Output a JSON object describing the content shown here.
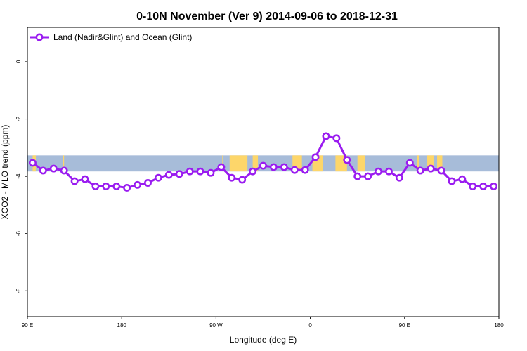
{
  "chart_data": {
    "type": "line",
    "title": "0-10N November (Ver 9)   2014-09-06 to 2018-12-31",
    "xlabel": "Longitude (deg E)",
    "ylabel": "XCO2 - MLO trend (ppm)",
    "x_ticks": [
      {
        "value": 90,
        "label": "90 E"
      },
      {
        "value": 180,
        "label": "180"
      },
      {
        "value": 270,
        "label": "90 W"
      },
      {
        "value": 360,
        "label": "0"
      },
      {
        "value": 450,
        "label": "90 E"
      },
      {
        "value": 540,
        "label": "180"
      }
    ],
    "y_ticks": [
      0,
      -2,
      -4,
      -6,
      -8
    ],
    "xlim": [
      90,
      540
    ],
    "ylim": [
      -8.9,
      1.2
    ],
    "grid": false,
    "legend_position": "top-left",
    "colors": {
      "series": "#9a1cf0",
      "ocean": "#a7bcd9",
      "land": "#fdd66a"
    },
    "background_band": {
      "y_range": [
        -3.83,
        -3.27
      ],
      "land_segments": [
        [
          95,
          98
        ],
        [
          124,
          125
        ],
        [
          276,
          277
        ],
        [
          283,
          300
        ],
        [
          305,
          310
        ],
        [
          343,
          352
        ],
        [
          362,
          372
        ],
        [
          384,
          395
        ],
        [
          405,
          412
        ],
        [
          462,
          464
        ],
        [
          471,
          478
        ],
        [
          481,
          486
        ]
      ]
    },
    "series": [
      {
        "name": "Land (Nadir&Glint) and Ocean (Glint)",
        "x": [
          95,
          105,
          115,
          125,
          135,
          145,
          155,
          165,
          175,
          185,
          195,
          205,
          215,
          225,
          235,
          245,
          255,
          265,
          275,
          285,
          295,
          305,
          315,
          325,
          335,
          345,
          355,
          365,
          375,
          385,
          395,
          405,
          415,
          425,
          435,
          445,
          455,
          465,
          475,
          485,
          495,
          505,
          515,
          525,
          535
        ],
        "values": [
          -3.53,
          -3.8,
          -3.73,
          -3.8,
          -4.17,
          -4.1,
          -4.35,
          -4.35,
          -4.35,
          -4.4,
          -4.3,
          -4.23,
          -4.05,
          -3.95,
          -3.92,
          -3.83,
          -3.83,
          -3.88,
          -3.68,
          -4.05,
          -4.12,
          -3.83,
          -3.63,
          -3.68,
          -3.68,
          -3.78,
          -3.78,
          -3.33,
          -2.6,
          -2.67,
          -3.43,
          -4.0,
          -4.0,
          -3.83,
          -3.83,
          -4.05,
          -3.53,
          -3.8,
          -3.73,
          -3.8,
          -4.17,
          -4.1,
          -4.35,
          -4.35,
          -4.35
        ]
      }
    ]
  }
}
